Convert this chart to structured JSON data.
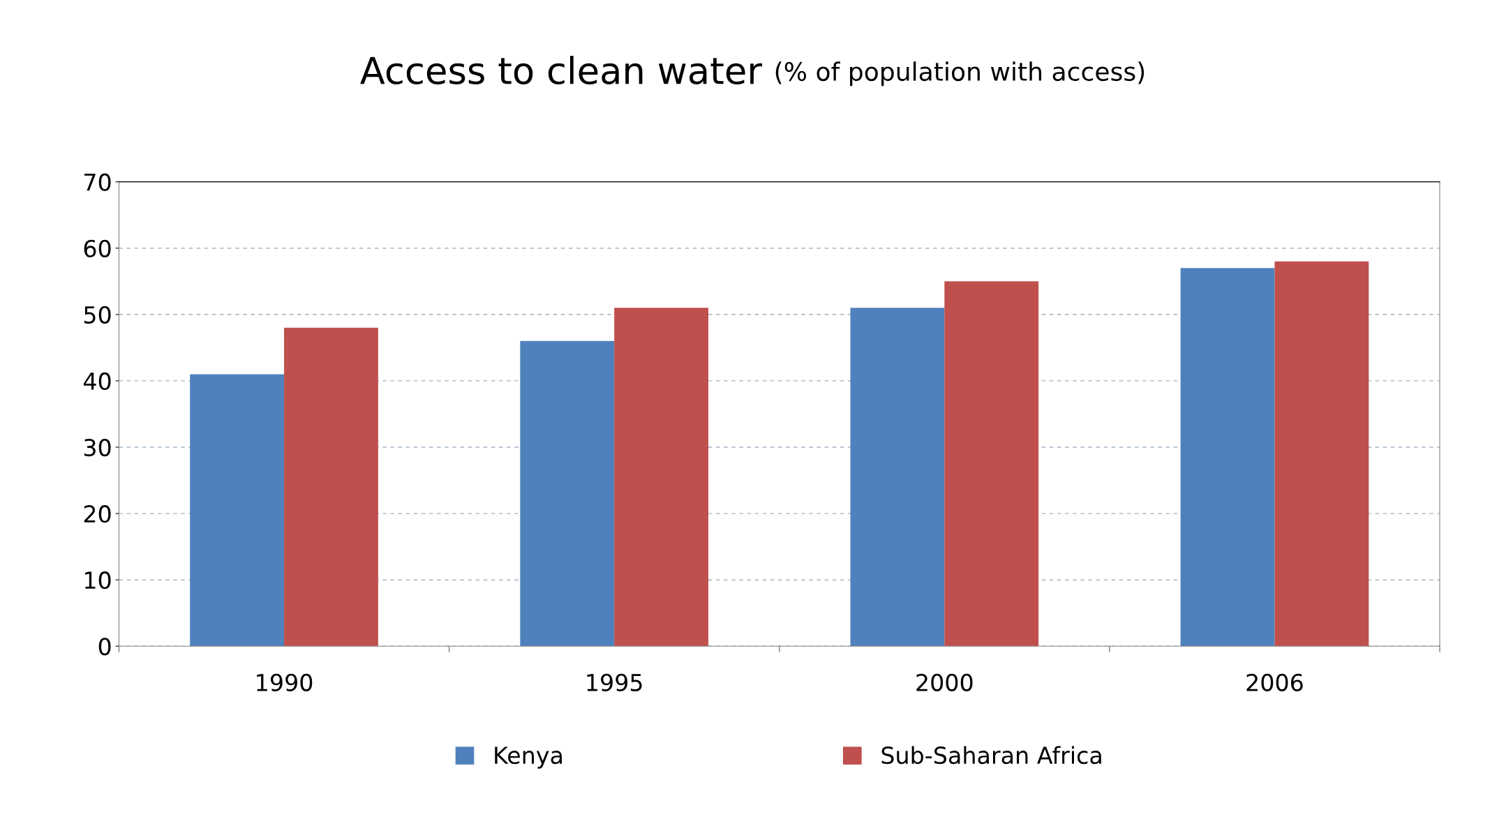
{
  "chart_data": {
    "type": "bar",
    "title": "Access to clean water",
    "subtitle": "(% of population with access)",
    "categories": [
      "1990",
      "1995",
      "2000",
      "2006"
    ],
    "series": [
      {
        "name": "Kenya",
        "color": "#4f81bd",
        "values": [
          41,
          46,
          51,
          57
        ]
      },
      {
        "name": "Sub-Saharan Africa",
        "color": "#c0504d",
        "values": [
          48,
          51,
          55,
          58
        ]
      }
    ],
    "ylim": [
      0,
      70
    ],
    "yticks": [
      0,
      10,
      20,
      30,
      40,
      50,
      60,
      70
    ],
    "grid": "y",
    "legend": "bottom"
  }
}
